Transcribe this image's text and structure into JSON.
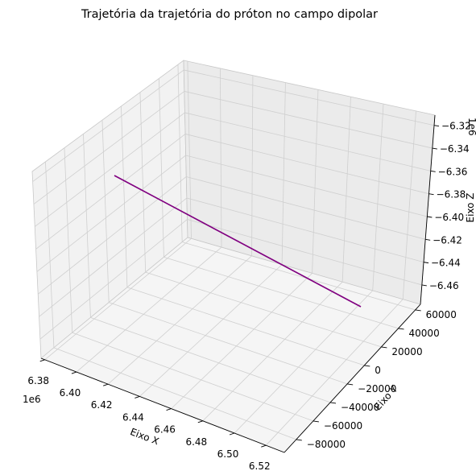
{
  "chart_data": {
    "type": "line3d",
    "title": "Trajetória da trajetória do próton no campo dipolar",
    "xlabel": "Eixo X",
    "ylabel": "Eixo Y",
    "zlabel": "Eixo Z",
    "x_offset_label": "1e6",
    "z_offset_label": "1e6",
    "x_ticks": [
      "6.38",
      "6.40",
      "6.42",
      "6.44",
      "6.46",
      "6.48",
      "6.50",
      "6.52"
    ],
    "y_ticks": [
      "60000",
      "40000",
      "20000",
      "0",
      "−20000",
      "−40000",
      "−60000",
      "−80000"
    ],
    "z_ticks": [
      "−6.32",
      "−6.34",
      "−6.36",
      "−6.38",
      "−6.40",
      "−6.42",
      "−6.44",
      "−6.46"
    ],
    "series": [
      {
        "color": "#800080",
        "points": [
          {
            "x": 6.38,
            "y": 0,
            "z": -6.3562
          },
          {
            "x": 6.53,
            "y": 0,
            "z": -6.472
          }
        ]
      }
    ],
    "grid": true
  }
}
